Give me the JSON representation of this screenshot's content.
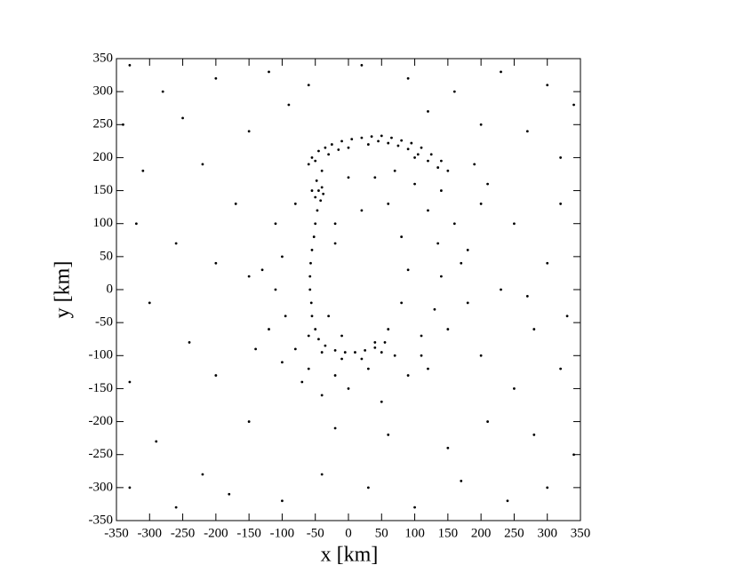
{
  "chart_data": {
    "type": "scatter",
    "xlabel": "x [km]",
    "ylabel": "y [km]",
    "color": "#000000",
    "xlim": [
      -350,
      350
    ],
    "ylim": [
      -350,
      350
    ],
    "xticks": [
      -350,
      -300,
      -250,
      -200,
      -150,
      -100,
      -50,
      0,
      50,
      100,
      150,
      200,
      250,
      300,
      350
    ],
    "yticks": [
      -350,
      -300,
      -250,
      -200,
      -150,
      -100,
      -50,
      0,
      50,
      100,
      150,
      200,
      250,
      300,
      350
    ],
    "x": [
      -330,
      -280,
      -200,
      -120,
      -60,
      20,
      90,
      160,
      230,
      300,
      340,
      -340,
      -250,
      -150,
      -90,
      120,
      200,
      270,
      320,
      -310,
      -220,
      -170,
      -320,
      -260,
      -200,
      -300,
      -240,
      -330,
      -200,
      -150,
      -290,
      -220,
      -330,
      -260,
      -180,
      -100,
      -40,
      30,
      100,
      170,
      240,
      300,
      340,
      280,
      210,
      150,
      60,
      -20,
      250,
      320,
      200,
      280,
      230,
      300,
      250,
      320,
      210,
      270,
      330,
      180,
      -100,
      -110,
      -95,
      -80,
      -60,
      -20,
      30,
      70,
      110,
      130,
      140,
      135,
      120,
      100,
      140,
      160,
      150,
      90,
      0,
      -70,
      -120,
      -130,
      -110,
      -80,
      -20,
      20,
      60,
      80,
      90,
      80,
      60,
      40,
      -10,
      -30,
      -20,
      40,
      70,
      0,
      110,
      120,
      -40,
      50,
      170,
      180,
      100,
      -150,
      -140,
      -100,
      200,
      190,
      -60,
      -55,
      -45,
      -35,
      -25,
      -10,
      5,
      20,
      35,
      50,
      65,
      80,
      95,
      110,
      125,
      140,
      150,
      -50,
      -30,
      0,
      30,
      60,
      90,
      120,
      -40,
      -15,
      45,
      75,
      105,
      135,
      -45,
      -50,
      -40,
      -48,
      -42,
      -55,
      -38,
      -47,
      -50,
      -52,
      -55,
      -57,
      -58,
      -58,
      -56,
      -55,
      -50,
      -45,
      -35,
      -20,
      -5,
      10,
      25,
      40,
      55,
      -60,
      -40,
      -10,
      20,
      50
    ],
    "values": [
      340,
      300,
      320,
      330,
      310,
      340,
      320,
      300,
      330,
      310,
      280,
      250,
      260,
      240,
      280,
      270,
      250,
      240,
      200,
      180,
      190,
      130,
      100,
      70,
      40,
      -20,
      -80,
      -140,
      -130,
      -200,
      -230,
      -280,
      -300,
      -330,
      -310,
      -320,
      -280,
      -300,
      -330,
      -290,
      -320,
      -300,
      -250,
      -220,
      -200,
      -240,
      -220,
      -210,
      -150,
      -120,
      -100,
      -60,
      0,
      40,
      100,
      130,
      160,
      -10,
      -40,
      60,
      50,
      0,
      -40,
      -90,
      -120,
      -130,
      -120,
      -100,
      -70,
      -30,
      20,
      70,
      120,
      160,
      150,
      100,
      -60,
      -130,
      -150,
      -140,
      -60,
      30,
      100,
      130,
      100,
      120,
      130,
      80,
      30,
      -20,
      -60,
      -80,
      -70,
      -40,
      70,
      170,
      180,
      170,
      -100,
      -120,
      -160,
      -170,
      40,
      -20,
      200,
      20,
      -90,
      -110,
      130,
      190,
      190,
      200,
      210,
      215,
      220,
      225,
      228,
      230,
      232,
      233,
      230,
      226,
      222,
      215,
      205,
      195,
      180,
      195,
      205,
      215,
      220,
      222,
      213,
      195,
      180,
      212,
      225,
      218,
      205,
      185,
      150,
      140,
      155,
      165,
      135,
      150,
      145,
      120,
      100,
      80,
      60,
      40,
      20,
      0,
      -20,
      -40,
      -60,
      -75,
      -85,
      -92,
      -95,
      -95,
      -92,
      -88,
      -80,
      -70,
      -95,
      -105,
      -105,
      -95
    ]
  }
}
